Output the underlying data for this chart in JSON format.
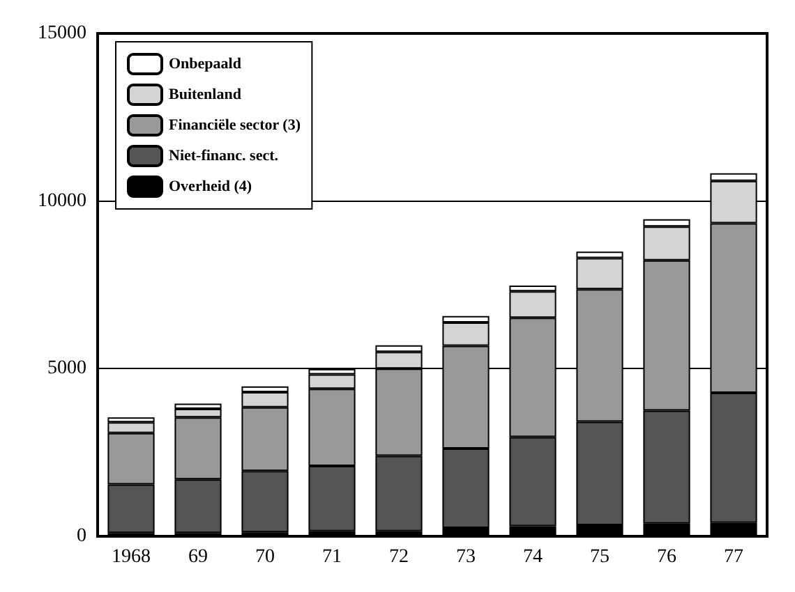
{
  "chart_data": {
    "type": "bar",
    "stacked": true,
    "categories": [
      "1968",
      "69",
      "70",
      "71",
      "72",
      "73",
      "74",
      "75",
      "76",
      "77"
    ],
    "series": [
      {
        "name": "Overheid (4)",
        "color": "#000000",
        "values": [
          100,
          100,
          120,
          150,
          150,
          250,
          300,
          330,
          380,
          400
        ]
      },
      {
        "name": "Niet-financ. sect.",
        "color": "#555555",
        "values": [
          1450,
          1600,
          1830,
          1950,
          2250,
          2370,
          2660,
          3090,
          3370,
          3880
        ]
      },
      {
        "name": "Financiële sector (3)",
        "color": "#999999",
        "values": [
          1530,
          1850,
          1900,
          2300,
          2600,
          3060,
          3560,
          3950,
          4480,
          5060
        ]
      },
      {
        "name": "Buitenland",
        "color": "#d4d4d4",
        "values": [
          320,
          250,
          450,
          430,
          500,
          700,
          790,
          930,
          1010,
          1260
        ]
      },
      {
        "name": "Onbepaald",
        "color": "#ffffff",
        "values": [
          150,
          160,
          170,
          160,
          200,
          190,
          170,
          190,
          220,
          230
        ]
      }
    ],
    "ylim": [
      0,
      15000
    ],
    "yticks": [
      0,
      5000,
      10000,
      15000
    ],
    "grid": "y",
    "legend": "top left"
  }
}
